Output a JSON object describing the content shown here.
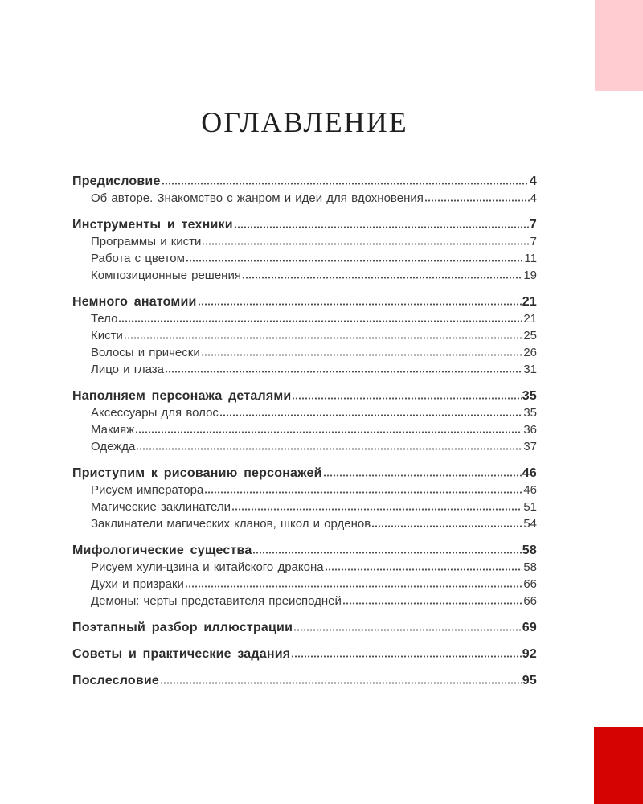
{
  "page": {
    "title": "ОГЛАВЛЕНИЕ"
  },
  "colors": {
    "pink_accent": "#ffccd1",
    "red_accent": "#d60303",
    "text": "#353535"
  },
  "toc": {
    "groups": [
      {
        "header": {
          "label": "Предисловие",
          "page": "4"
        },
        "items": [
          {
            "label": "Об авторе. Знакомство с жанром и идеи для вдохновения",
            "page": "4"
          }
        ]
      },
      {
        "header": {
          "label": "Инструменты и техники",
          "page": "7"
        },
        "items": [
          {
            "label": "Программы и кисти",
            "page": "7"
          },
          {
            "label": "Работа с цветом",
            "page": "11"
          },
          {
            "label": "Композиционные решения",
            "page": "19"
          }
        ]
      },
      {
        "header": {
          "label": "Немного анатомии",
          "page": "21"
        },
        "items": [
          {
            "label": "Тело",
            "page": "21"
          },
          {
            "label": "Кисти",
            "page": "25"
          },
          {
            "label": "Волосы и прически",
            "page": "26"
          },
          {
            "label": "Лицо и глаза",
            "page": "31"
          }
        ]
      },
      {
        "header": {
          "label": "Наполняем персонажа деталями",
          "page": "35"
        },
        "items": [
          {
            "label": "Аксессуары для волос",
            "page": "35"
          },
          {
            "label": "Макияж",
            "page": "36"
          },
          {
            "label": "Одежда",
            "page": "37"
          }
        ]
      },
      {
        "header": {
          "label": "Приступим к рисованию персонажей",
          "page": "46"
        },
        "items": [
          {
            "label": "Рисуем императора",
            "page": "46"
          },
          {
            "label": "Магические заклинатели",
            "page": "51"
          },
          {
            "label": "Заклинатели магических кланов, школ и орденов",
            "page": "54"
          }
        ]
      },
      {
        "header": {
          "label": "Мифологические существа",
          "page": "58"
        },
        "items": [
          {
            "label": "Рисуем хули-цзина и китайского дракона",
            "page": "58"
          },
          {
            "label": "Духи и призраки",
            "page": "66"
          },
          {
            "label": "Демоны: черты представителя преисподней",
            "page": "66"
          }
        ]
      },
      {
        "header": {
          "label": "Поэтапный разбор иллюстрации",
          "page": "69"
        },
        "items": []
      },
      {
        "header": {
          "label": "Советы и практические задания",
          "page": "92"
        },
        "items": []
      },
      {
        "header": {
          "label": "Послесловие",
          "page": "95"
        },
        "items": []
      }
    ]
  }
}
